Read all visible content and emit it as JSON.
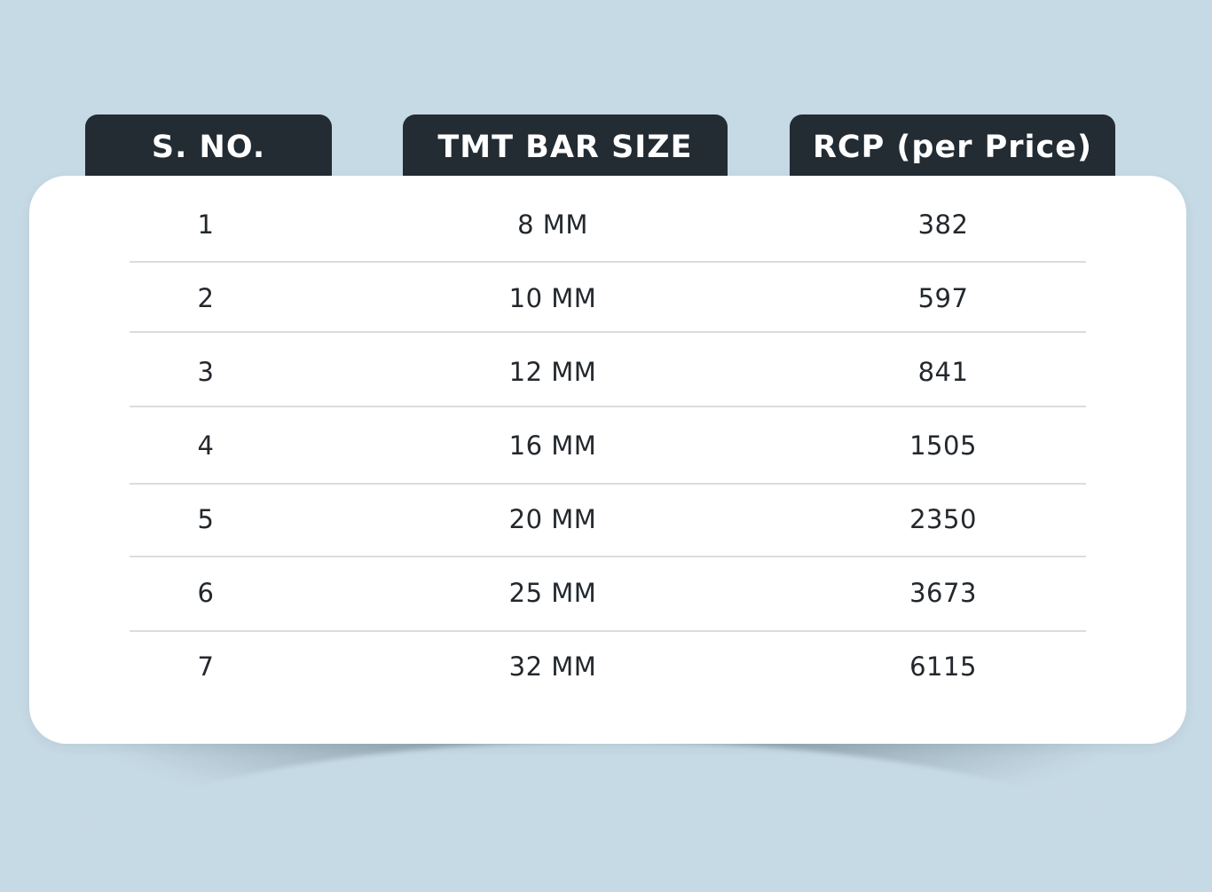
{
  "table": {
    "headers": [
      "S. NO.",
      "TMT BAR SIZE",
      "RCP (per Price)"
    ],
    "rows": [
      {
        "sno": "1",
        "size": "8 MM",
        "rcp": "382"
      },
      {
        "sno": "2",
        "size": "10 MM",
        "rcp": "597"
      },
      {
        "sno": "3",
        "size": "12 MM",
        "rcp": "841"
      },
      {
        "sno": "4",
        "size": "16 MM",
        "rcp": "1505"
      },
      {
        "sno": "5",
        "size": "20 MM",
        "rcp": "2350"
      },
      {
        "sno": "6",
        "size": "25 MM",
        "rcp": "3673"
      },
      {
        "sno": "7",
        "size": "32 MM",
        "rcp": "6115"
      }
    ]
  },
  "colors": {
    "background": "#c6dae5",
    "header_bg": "#232b33",
    "header_text": "#ffffff",
    "card_bg": "#ffffff",
    "body_text": "#23282d",
    "divider": "#d9dde0"
  }
}
